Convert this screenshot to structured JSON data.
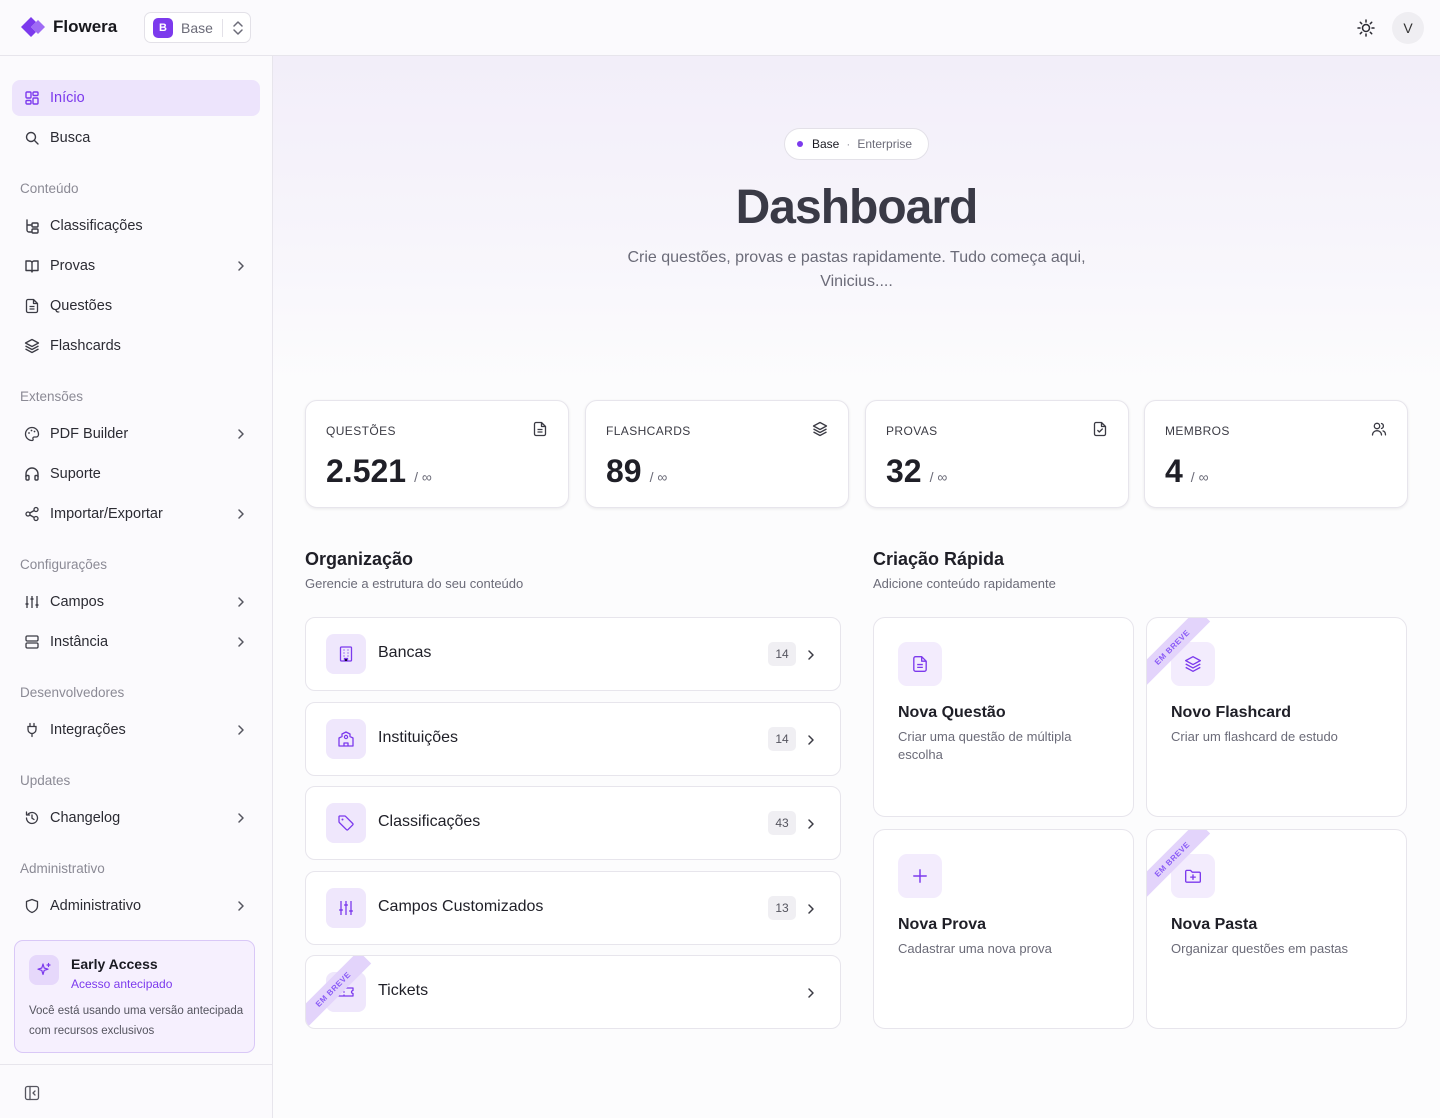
{
  "app": {
    "name": "Flowera"
  },
  "instance": {
    "badge": "B",
    "name": "Base"
  },
  "user": {
    "avatar_initial": "V"
  },
  "sidebar": {
    "items": [
      {
        "label": "Início",
        "icon": "dashboard-icon",
        "active": true
      },
      {
        "label": "Busca",
        "icon": "search-icon"
      }
    ],
    "sections": [
      {
        "title": "Conteúdo",
        "items": [
          {
            "label": "Classificações",
            "icon": "tree-icon"
          },
          {
            "label": "Provas",
            "icon": "book-icon",
            "has_submenu": true
          },
          {
            "label": "Questões",
            "icon": "file-text-icon"
          },
          {
            "label": "Flashcards",
            "icon": "layers-icon"
          }
        ]
      },
      {
        "title": "Extensões",
        "items": [
          {
            "label": "PDF Builder",
            "icon": "palette-icon",
            "has_submenu": true
          },
          {
            "label": "Suporte",
            "icon": "headphones-icon"
          },
          {
            "label": "Importar/Exportar",
            "icon": "share-icon",
            "has_submenu": true
          }
        ]
      },
      {
        "title": "Configurações",
        "items": [
          {
            "label": "Campos",
            "icon": "sliders-icon",
            "has_submenu": true
          },
          {
            "label": "Instância",
            "icon": "server-icon",
            "has_submenu": true
          }
        ]
      },
      {
        "title": "Desenvolvedores",
        "items": [
          {
            "label": "Integrações",
            "icon": "plug-icon",
            "has_submenu": true
          }
        ]
      },
      {
        "title": "Updates",
        "items": [
          {
            "label": "Changelog",
            "icon": "history-icon",
            "has_submenu": true
          }
        ]
      },
      {
        "title": "Administrativo",
        "items": [
          {
            "label": "Administrativo",
            "icon": "shield-icon",
            "has_submenu": true
          }
        ]
      }
    ],
    "early_access": {
      "title": "Early Access",
      "subtitle": "Acesso antecipado",
      "description": "Você está usando uma versão antecipada com recursos exclusivos"
    }
  },
  "hero": {
    "pill_base": "Base",
    "pill_sep": "·",
    "pill_plan": "Enterprise",
    "title": "Dashboard",
    "subtitle": "Crie questões, provas e pastas rapidamente. Tudo começa aqui, Vinicius...."
  },
  "stats": [
    {
      "label": "QUESTÕES",
      "value": "2.521",
      "limit": "/ ∞",
      "icon": "file-text-icon"
    },
    {
      "label": "FLASHCARDS",
      "value": "89",
      "limit": "/ ∞",
      "icon": "layers-icon"
    },
    {
      "label": "PROVAS",
      "value": "32",
      "limit": "/ ∞",
      "icon": "file-check-icon"
    },
    {
      "label": "MEMBROS",
      "value": "4",
      "limit": "/ ∞",
      "icon": "users-icon"
    }
  ],
  "organization": {
    "title": "Organização",
    "subtitle": "Gerencie a estrutura do seu conteúdo",
    "items": [
      {
        "label": "Bancas",
        "count": "14",
        "icon": "building-icon"
      },
      {
        "label": "Instituições",
        "count": "14",
        "icon": "school-icon"
      },
      {
        "label": "Classificações",
        "count": "43",
        "icon": "tag-icon"
      },
      {
        "label": "Campos Customizados",
        "count": "13",
        "icon": "sliders-icon"
      },
      {
        "label": "Tickets",
        "icon": "ticket-icon",
        "ribbon": "EM BREVE"
      }
    ]
  },
  "quick_create": {
    "title": "Criação Rápida",
    "subtitle": "Adicione conteúdo rapidamente",
    "items": [
      {
        "title": "Nova Questão",
        "description": "Criar uma questão de múltipla escolha",
        "icon": "file-text-icon"
      },
      {
        "title": "Novo Flashcard",
        "description": "Criar um flashcard de estudo",
        "icon": "layers-icon",
        "ribbon": "EM BREVE"
      },
      {
        "title": "Nova Prova",
        "description": "Cadastrar uma nova prova",
        "icon": "plus-icon"
      },
      {
        "title": "Nova Pasta",
        "description": "Organizar questões em pastas",
        "icon": "folder-plus-icon",
        "ribbon": "EM BREVE"
      }
    ]
  },
  "colors": {
    "accent": "#7c3aed",
    "accent_soft": "#ede4fc"
  }
}
